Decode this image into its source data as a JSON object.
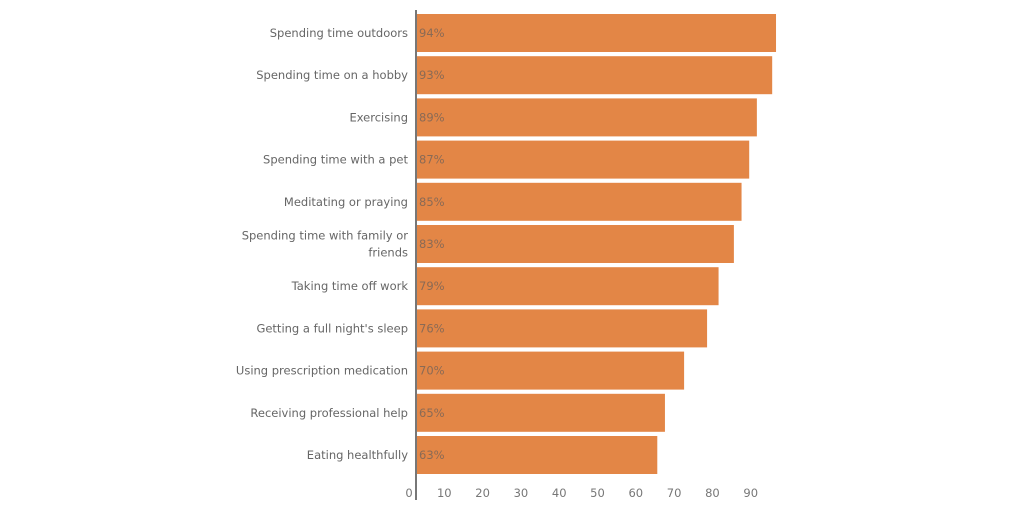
{
  "chart_data": {
    "type": "bar",
    "orientation": "horizontal",
    "categories": [
      "Spending time outdoors",
      "Spending time on a hobby",
      "Exercising",
      "Spending time with a pet",
      "Meditating or praying",
      "Spending time with family or friends",
      "Taking time off work",
      "Getting a full night's sleep",
      "Using prescription medication",
      "Receiving professional help",
      "Eating healthfully"
    ],
    "category_lines": [
      [
        "Spending time outdoors"
      ],
      [
        "Spending time on a hobby"
      ],
      [
        "Exercising"
      ],
      [
        "Spending time with a pet"
      ],
      [
        "Meditating or praying"
      ],
      [
        "Spending time with family or",
        "friends"
      ],
      [
        "Taking time off work"
      ],
      [
        "Getting a full night's sleep"
      ],
      [
        "Using prescription medication"
      ],
      [
        "Receiving professional help"
      ],
      [
        "Eating healthfully"
      ]
    ],
    "values": [
      94,
      93,
      89,
      87,
      85,
      83,
      79,
      76,
      70,
      65,
      63
    ],
    "data_labels": [
      "94%",
      "93%",
      "89%",
      "87%",
      "85%",
      "83%",
      "79%",
      "76%",
      "70%",
      "65%",
      "63%"
    ],
    "xticks": [
      "0",
      "10",
      "20",
      "30",
      "40",
      "50",
      "60",
      "70",
      "80",
      "90"
    ],
    "xlim": [
      0,
      100
    ],
    "grid": false,
    "bar_color": "#E38646",
    "title": "",
    "xlabel": "",
    "ylabel": ""
  }
}
